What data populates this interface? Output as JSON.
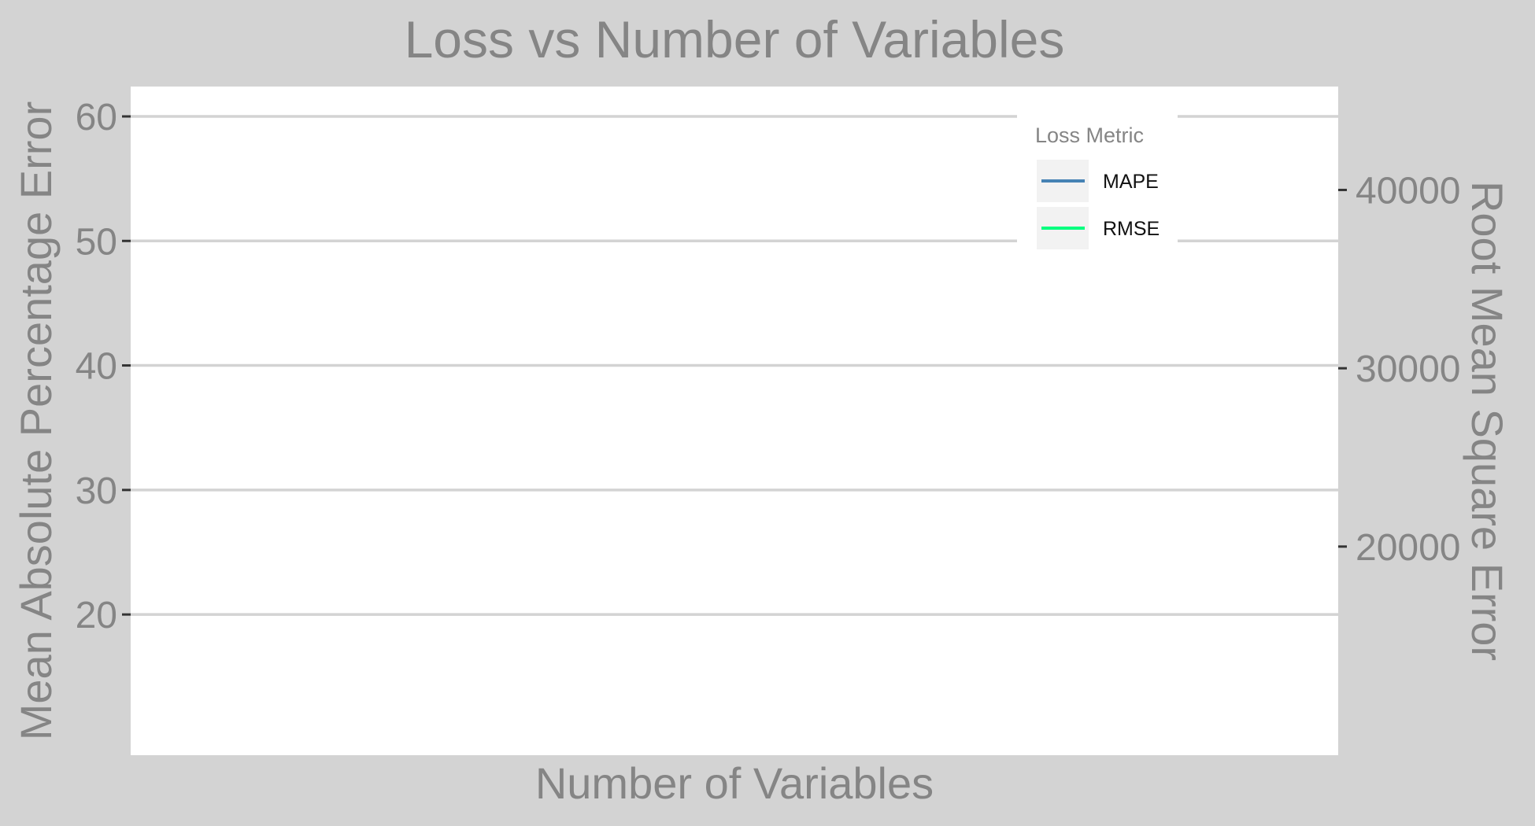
{
  "chart_data": {
    "type": "line",
    "title": "Loss vs Number of Variables",
    "xlabel": "Number of Variables",
    "ylabel": "Mean Absolute Percentage Error",
    "y2label": "Root Mean Square Error",
    "ylim": [
      8.7,
      62.4
    ],
    "y2lim": [
      8300,
      45800
    ],
    "yticks": [
      20,
      30,
      40,
      50,
      60
    ],
    "y2ticks": [
      20000,
      30000,
      40000
    ],
    "grid": true,
    "legend": {
      "title": "Loss Metric",
      "position": "top-right",
      "entries": [
        {
          "name": "MAPE",
          "color": "#4682b4"
        },
        {
          "name": "RMSE",
          "color": "#00ff7f"
        }
      ]
    },
    "series": [
      {
        "name": "MAPE",
        "axis": "left",
        "color": "#4682b4",
        "x": [],
        "values": []
      },
      {
        "name": "RMSE",
        "axis": "right",
        "color": "#00ff7f",
        "x": [],
        "values": []
      }
    ],
    "colors": {
      "background": "#d3d3d3",
      "panel": "#ffffff",
      "grid": "#d3d3d3",
      "text": "#858585"
    }
  }
}
